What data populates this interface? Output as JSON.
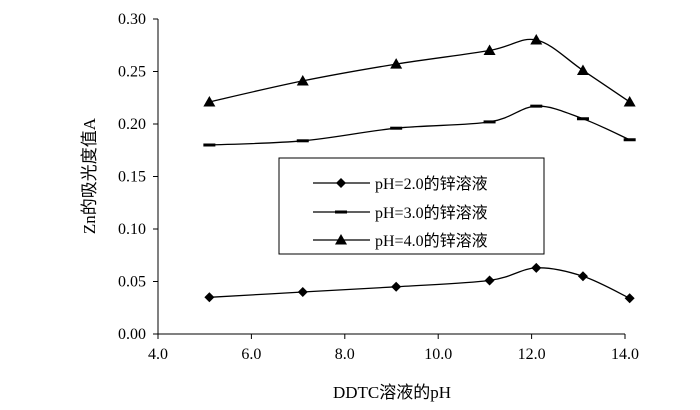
{
  "chart_data": {
    "type": "line",
    "title": "",
    "xlabel": "DDTC溶液的pH",
    "ylabel": "Zn的吸光度值A",
    "xlim": [
      4.0,
      14.0
    ],
    "ylim": [
      0.0,
      0.3
    ],
    "x_ticks": [
      "4.0",
      "6.0",
      "8.0",
      "10.0",
      "12.0",
      "14.0"
    ],
    "y_ticks": [
      "0.00",
      "0.05",
      "0.10",
      "0.15",
      "0.20",
      "0.25",
      "0.30"
    ],
    "grid": false,
    "legend_position": "center-right",
    "series": [
      {
        "name": "pH=2.0的锌溶液",
        "marker": "diamond",
        "x": [
          5.1,
          7.1,
          9.1,
          11.1,
          12.1,
          13.1,
          14.1
        ],
        "y": [
          0.035,
          0.04,
          0.045,
          0.051,
          0.063,
          0.055,
          0.034
        ]
      },
      {
        "name": "pH=3.0的锌溶液",
        "marker": "dash",
        "x": [
          5.1,
          7.1,
          9.1,
          11.1,
          12.1,
          13.1,
          14.1
        ],
        "y": [
          0.18,
          0.184,
          0.196,
          0.202,
          0.217,
          0.205,
          0.185
        ]
      },
      {
        "name": "pH=4.0的锌溶液",
        "marker": "triangle",
        "x": [
          5.1,
          7.1,
          9.1,
          11.1,
          12.1,
          13.1,
          14.1
        ],
        "y": [
          0.221,
          0.241,
          0.257,
          0.27,
          0.28,
          0.251,
          0.221
        ]
      }
    ]
  }
}
